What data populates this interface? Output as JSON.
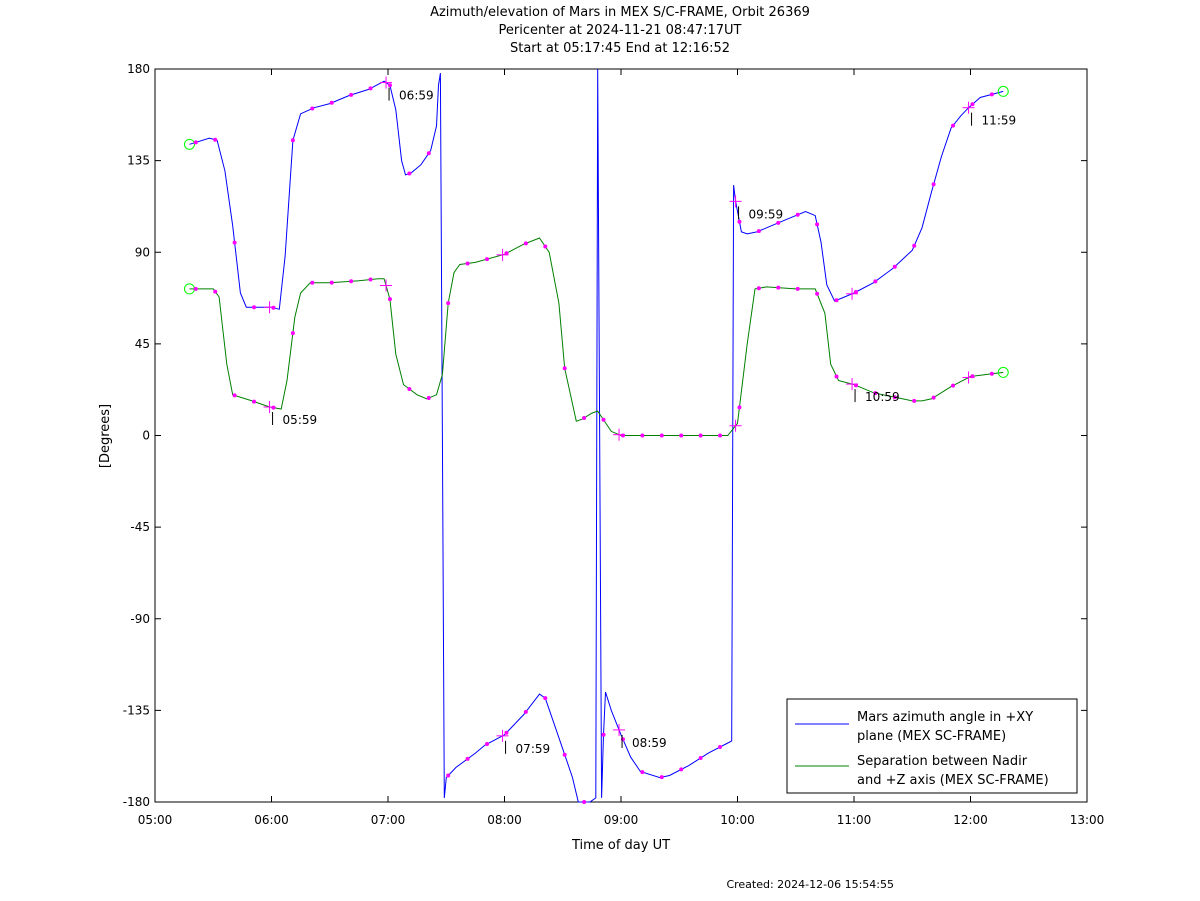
{
  "chart_data": {
    "type": "line",
    "title": "Azimuth/elevation of Mars in MEX S/C-FRAME,  Orbit 26369",
    "subtitle1": "Pericenter at 2024-11-21 08:47:17UT",
    "subtitle2": "Start at 05:17:45 End at 12:16:52",
    "xlabel": "Time of day UT",
    "ylabel": "[Degrees]",
    "xlim": [
      "05:00",
      "13:00"
    ],
    "ylim": [
      -180,
      180
    ],
    "x_ticks": [
      "05:00",
      "06:00",
      "07:00",
      "08:00",
      "09:00",
      "10:00",
      "11:00",
      "12:00",
      "13:00"
    ],
    "y_ticks": [
      180,
      135,
      90,
      45,
      0,
      -45,
      -90,
      -135,
      -180
    ],
    "series": [
      {
        "name": "Mars azimuth angle in +XY plane (MEX SC-FRAME)",
        "legend_lines": [
          "Mars azimuth angle in +XY",
          "plane (MEX SC-FRAME)"
        ],
        "color": "#0000ff",
        "points": [
          [
            "05:17:45",
            143
          ],
          [
            "05:28",
            146
          ],
          [
            "05:32",
            145
          ],
          [
            "05:36",
            130
          ],
          [
            "05:40",
            103
          ],
          [
            "05:44",
            70
          ],
          [
            "05:47",
            63
          ],
          [
            "05:50",
            63
          ],
          [
            "06:00",
            63
          ],
          [
            "06:04",
            62
          ],
          [
            "06:07",
            88
          ],
          [
            "06:11",
            145
          ],
          [
            "06:15",
            158
          ],
          [
            "06:22",
            161
          ],
          [
            "06:30",
            163
          ],
          [
            "06:40",
            167
          ],
          [
            "06:50",
            170
          ],
          [
            "06:58",
            174
          ],
          [
            "07:01",
            172
          ],
          [
            "07:04",
            160
          ],
          [
            "07:07",
            135
          ],
          [
            "07:09",
            128
          ],
          [
            "07:12",
            129
          ],
          [
            "07:17",
            133
          ],
          [
            "07:22",
            140
          ],
          [
            "07:25",
            152
          ],
          [
            "07:26",
            172
          ],
          [
            "07:27",
            178
          ],
          [
            "07:28",
            0
          ],
          [
            "07:29",
            -178
          ],
          [
            "07:30",
            -168
          ],
          [
            "07:35",
            -163
          ],
          [
            "07:45",
            -156
          ],
          [
            "07:50",
            -152
          ],
          [
            "08:00",
            -147
          ],
          [
            "08:10",
            -137
          ],
          [
            "08:18",
            -127
          ],
          [
            "08:21",
            -129
          ],
          [
            "08:30",
            -154
          ],
          [
            "08:35",
            -168
          ],
          [
            "08:38",
            -180
          ],
          [
            "08:44",
            -180
          ],
          [
            "08:47",
            -178
          ],
          [
            "08:48",
            180
          ],
          [
            "08:50",
            -178
          ],
          [
            "08:51",
            -147
          ],
          [
            "08:52",
            -126
          ],
          [
            "08:55",
            -135
          ],
          [
            "09:00",
            -147
          ],
          [
            "09:05",
            -158
          ],
          [
            "09:10",
            -165
          ],
          [
            "09:20",
            -168
          ],
          [
            "09:25",
            -167
          ],
          [
            "09:35",
            -162
          ],
          [
            "09:45",
            -156
          ],
          [
            "09:55",
            -151
          ],
          [
            "09:57",
            -150
          ],
          [
            "09:58",
            123
          ],
          [
            "09:59",
            115
          ],
          [
            "10:02",
            100
          ],
          [
            "10:05",
            99
          ],
          [
            "10:10",
            100
          ],
          [
            "10:20",
            104
          ],
          [
            "10:30",
            108
          ],
          [
            "10:35",
            110
          ],
          [
            "10:40",
            108
          ],
          [
            "10:43",
            95
          ],
          [
            "10:46",
            74
          ],
          [
            "10:50",
            66
          ],
          [
            "11:00",
            70
          ],
          [
            "11:10",
            75
          ],
          [
            "11:20",
            82
          ],
          [
            "11:30",
            91
          ],
          [
            "11:35",
            102
          ],
          [
            "11:40",
            120
          ],
          [
            "11:45",
            137
          ],
          [
            "11:50",
            151
          ],
          [
            "11:55",
            157
          ],
          [
            "11:59",
            161
          ],
          [
            "12:05",
            166
          ],
          [
            "12:16:52",
            169
          ]
        ]
      },
      {
        "name": "Separation between Nadir and +Z axis (MEX SC-FRAME)",
        "legend_lines": [
          "Separation between Nadir",
          "and +Z axis (MEX SC-FRAME)"
        ],
        "color": "#008000",
        "points": [
          [
            "05:17:45",
            72
          ],
          [
            "05:30",
            72
          ],
          [
            "05:33",
            68
          ],
          [
            "05:37",
            35
          ],
          [
            "05:40",
            20
          ],
          [
            "05:50",
            17
          ],
          [
            "05:59",
            14
          ],
          [
            "06:05",
            13
          ],
          [
            "06:08",
            27
          ],
          [
            "06:12",
            58
          ],
          [
            "06:15",
            70
          ],
          [
            "06:20",
            75
          ],
          [
            "06:30",
            75
          ],
          [
            "06:45",
            76
          ],
          [
            "06:55",
            77
          ],
          [
            "06:58",
            77
          ],
          [
            "07:01",
            67
          ],
          [
            "07:04",
            40
          ],
          [
            "07:08",
            25
          ],
          [
            "07:15",
            20
          ],
          [
            "07:20",
            18
          ],
          [
            "07:25",
            20
          ],
          [
            "07:28",
            30
          ],
          [
            "07:31",
            65
          ],
          [
            "07:34",
            80
          ],
          [
            "07:37",
            84
          ],
          [
            "07:45",
            85
          ],
          [
            "08:00",
            89
          ],
          [
            "08:10",
            94
          ],
          [
            "08:18",
            97
          ],
          [
            "08:23",
            90
          ],
          [
            "08:28",
            65
          ],
          [
            "08:31",
            33
          ],
          [
            "08:37",
            7
          ],
          [
            "08:40",
            8
          ],
          [
            "08:45",
            11
          ],
          [
            "08:48",
            12
          ],
          [
            "08:55",
            2
          ],
          [
            "09:00",
            0
          ],
          [
            "09:30",
            0
          ],
          [
            "09:55",
            0
          ],
          [
            "10:00",
            6
          ],
          [
            "10:05",
            45
          ],
          [
            "10:09",
            72
          ],
          [
            "10:15",
            73
          ],
          [
            "10:30",
            72
          ],
          [
            "10:40",
            72
          ],
          [
            "10:45",
            60
          ],
          [
            "10:48",
            35
          ],
          [
            "10:52",
            27
          ],
          [
            "11:00",
            25
          ],
          [
            "11:10",
            21
          ],
          [
            "11:20",
            19
          ],
          [
            "11:30",
            17
          ],
          [
            "11:35",
            17
          ],
          [
            "11:40",
            18
          ],
          [
            "11:50",
            24
          ],
          [
            "12:00",
            29
          ],
          [
            "12:16:52",
            31
          ]
        ]
      }
    ],
    "hour_labels": [
      {
        "time": "05:59",
        "series": 1
      },
      {
        "time": "06:59",
        "series": 0
      },
      {
        "time": "07:59",
        "series": 0
      },
      {
        "time": "08:59",
        "series": 0
      },
      {
        "time": "09:59",
        "series": 0
      },
      {
        "time": "10:59",
        "series": 1
      },
      {
        "time": "11:59",
        "series": 0
      }
    ],
    "grid": false,
    "legend_position": "bottom-right",
    "marker_color": "#ff00ff",
    "endpoint_marker_color": "#00ff00",
    "created": "Created: 2024-12-06 15:54:55"
  }
}
